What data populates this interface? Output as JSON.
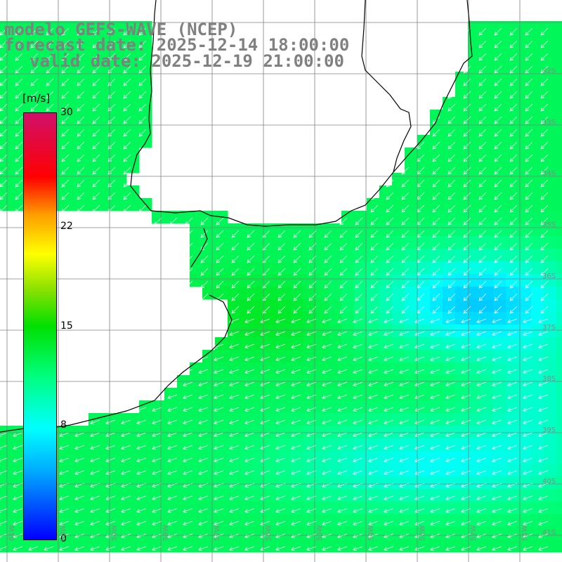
{
  "title": {
    "model": "modelo GEFS-WAVE (NCEP)",
    "forecast": "forecast date: 2025-12-14 18:00:00",
    "valid": "valid date: 2025-12-19 21:00:00"
  },
  "colorbar": {
    "unit": "[m/s]",
    "ticks": [
      {
        "label": "30",
        "value": 30
      },
      {
        "label": "22",
        "value": 22
      },
      {
        "label": "15",
        "value": 15
      },
      {
        "label": "8",
        "value": 8
      },
      {
        "label": "0",
        "value": 0
      }
    ],
    "range": [
      0,
      30
    ]
  },
  "map": {
    "lat_labels": [
      "32S",
      "33S",
      "34S",
      "35S",
      "36S",
      "37S",
      "38S",
      "39S",
      "40S",
      "41S"
    ],
    "lon_labels": [
      "61W",
      "60W",
      "59W",
      "58W",
      "57W",
      "56W",
      "55W",
      "54W",
      "53W",
      "52W",
      "51W"
    ],
    "field": "wind speed",
    "colors": {
      "land": "#ffffff",
      "coast": "#000000",
      "grid": "#808080",
      "arrows": "#ffffff"
    }
  }
}
